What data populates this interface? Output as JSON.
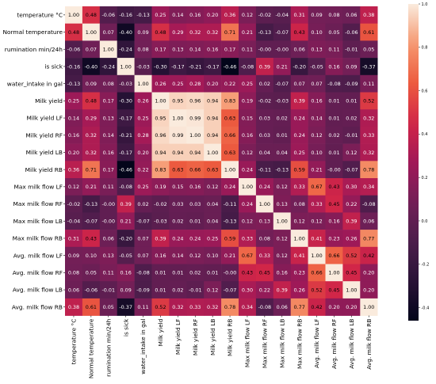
{
  "chart_data": {
    "type": "heatmap",
    "title": "",
    "xlabel": "",
    "ylabel": "",
    "labels": [
      "temperature °C",
      "Normal temperature",
      "rumination min/24h",
      "is sick",
      "water_intake in gal",
      "Milk yield",
      "Milk yield LF",
      "Milk yield RF",
      "Milk yield LB",
      "Milk yield RB",
      "Max milk flow LF",
      "Max milk flow RF",
      "Max milk flow LB",
      "Max milk flow RB",
      "Avg. milk flow LF",
      "Avg. milk flow RF",
      "Avg. milk flow LB",
      "Avg. milk flow RB"
    ],
    "row_labels": [
      "temperature °C",
      "Normal temperature",
      "rumination min/24h",
      "is sick",
      "water_intake in gal",
      "Milk yield",
      "Milk yield LF",
      "Milk yield RF",
      "Milk yield LB",
      "Milk yield RB",
      "Max milk flow LF",
      "Max milk flow RF",
      "Max milk flow LB",
      "Max milk flow RB",
      "Avg. milk flow LF",
      "Avg. milk flow RF",
      "Avg. milk flow LB",
      "Avg. milk flow RB"
    ],
    "value_labels": [
      [
        "1.00",
        "0.48",
        "-0.06",
        "-0.16",
        "-0.13",
        "0.25",
        "0.14",
        "0.16",
        "0.20",
        "0.36",
        "0.12",
        "-0.02",
        "-0.04",
        "0.31",
        "0.09",
        "0.08",
        "0.06",
        "0.38"
      ],
      [
        "0.48",
        "1.00",
        "0.07",
        "-0.40",
        "0.09",
        "0.48",
        "0.29",
        "0.32",
        "0.32",
        "0.71",
        "0.21",
        "-0.13",
        "-0.07",
        "0.43",
        "0.10",
        "0.05",
        "-0.06",
        "0.61"
      ],
      [
        "-0.06",
        "0.07",
        "1.00",
        "-0.24",
        "0.08",
        "0.17",
        "0.13",
        "0.14",
        "0.16",
        "0.17",
        "0.11",
        "-0.00",
        "-0.00",
        "0.06",
        "0.13",
        "0.11",
        "-0.01",
        "0.05"
      ],
      [
        "-0.16",
        "-0.40",
        "-0.24",
        "1.00",
        "-0.03",
        "-0.30",
        "-0.17",
        "-0.21",
        "-0.17",
        "-0.46",
        "-0.08",
        "0.39",
        "0.21",
        "-0.20",
        "-0.05",
        "0.16",
        "0.09",
        "-0.37"
      ],
      [
        "-0.13",
        "0.09",
        "0.08",
        "-0.03",
        "1.00",
        "0.26",
        "0.25",
        "0.28",
        "0.20",
        "0.22",
        "0.25",
        "0.02",
        "-0.07",
        "0.07",
        "0.07",
        "-0.08",
        "-0.09",
        "0.11"
      ],
      [
        "0.25",
        "0.48",
        "0.17",
        "-0.30",
        "0.26",
        "1.00",
        "0.95",
        "0.96",
        "0.94",
        "0.83",
        "0.19",
        "-0.02",
        "-0.03",
        "0.39",
        "0.16",
        "0.01",
        "0.01",
        "0.52"
      ],
      [
        "0.14",
        "0.29",
        "0.13",
        "-0.17",
        "0.25",
        "0.95",
        "1.00",
        "0.99",
        "0.94",
        "0.63",
        "0.15",
        "0.03",
        "0.02",
        "0.24",
        "0.14",
        "0.01",
        "0.02",
        "0.32"
      ],
      [
        "0.16",
        "0.32",
        "0.14",
        "-0.21",
        "0.28",
        "0.96",
        "0.99",
        "1.00",
        "0.94",
        "0.66",
        "0.16",
        "0.03",
        "0.01",
        "0.24",
        "0.12",
        "0.02",
        "-0.01",
        "0.33"
      ],
      [
        "0.20",
        "0.32",
        "0.16",
        "-0.17",
        "0.20",
        "0.94",
        "0.94",
        "0.94",
        "1.00",
        "0.63",
        "0.12",
        "0.04",
        "0.04",
        "0.25",
        "0.10",
        "0.01",
        "0.12",
        "0.32"
      ],
      [
        "0.36",
        "0.71",
        "0.17",
        "-0.46",
        "0.22",
        "0.83",
        "0.63",
        "0.66",
        "0.63",
        "1.00",
        "0.24",
        "-0.11",
        "-0.13",
        "0.59",
        "0.21",
        "-0.00",
        "-0.07",
        "0.78"
      ],
      [
        "0.12",
        "0.21",
        "0.11",
        "-0.08",
        "0.25",
        "0.19",
        "0.15",
        "0.16",
        "0.12",
        "0.24",
        "1.00",
        "0.24",
        "0.12",
        "0.33",
        "0.67",
        "0.43",
        "0.30",
        "0.34"
      ],
      [
        "-0.02",
        "-0.13",
        "-0.00",
        "0.39",
        "0.02",
        "-0.02",
        "0.03",
        "0.03",
        "0.04",
        "-0.11",
        "0.24",
        "1.00",
        "0.13",
        "0.08",
        "0.33",
        "0.45",
        "0.22",
        "-0.08"
      ],
      [
        "-0.04",
        "-0.07",
        "-0.00",
        "0.21",
        "-0.07",
        "-0.03",
        "0.02",
        "0.01",
        "0.04",
        "-0.13",
        "0.12",
        "0.13",
        "1.00",
        "0.12",
        "0.12",
        "0.16",
        "0.39",
        "0.06"
      ],
      [
        "0.31",
        "0.43",
        "0.06",
        "-0.20",
        "0.07",
        "0.39",
        "0.24",
        "0.24",
        "0.25",
        "0.59",
        "0.33",
        "0.08",
        "0.12",
        "1.00",
        "0.41",
        "0.23",
        "0.26",
        "0.77"
      ],
      [
        "0.09",
        "0.10",
        "0.13",
        "-0.05",
        "0.07",
        "0.16",
        "0.14",
        "0.12",
        "0.10",
        "0.21",
        "0.67",
        "0.33",
        "0.12",
        "0.41",
        "1.00",
        "0.66",
        "0.52",
        "0.42"
      ],
      [
        "0.08",
        "0.05",
        "0.11",
        "0.16",
        "-0.08",
        "0.01",
        "0.01",
        "0.02",
        "0.01",
        "-0.00",
        "0.43",
        "0.45",
        "0.16",
        "0.23",
        "0.66",
        "1.00",
        "0.45",
        "0.20"
      ],
      [
        "0.06",
        "-0.06",
        "-0.01",
        "0.09",
        "-0.09",
        "0.01",
        "0.02",
        "-0.01",
        "0.12",
        "-0.07",
        "0.30",
        "0.22",
        "0.39",
        "0.26",
        "0.52",
        "0.45",
        "1.00",
        "0.20"
      ],
      [
        "0.38",
        "0.61",
        "0.05",
        "-0.37",
        "0.11",
        "0.52",
        "0.32",
        "0.33",
        "0.32",
        "0.78",
        "0.34",
        "-0.08",
        "0.06",
        "0.77",
        "0.42",
        "0.20",
        "0.20",
        "1.00"
      ]
    ],
    "vmin": -0.46,
    "vmax": 1.0,
    "colormap": "rocket",
    "colorbar_ticks": [
      "1.0",
      "0.8",
      "0.6",
      "0.4",
      "0.2",
      "0.0",
      "-0.2",
      "-0.4"
    ]
  }
}
